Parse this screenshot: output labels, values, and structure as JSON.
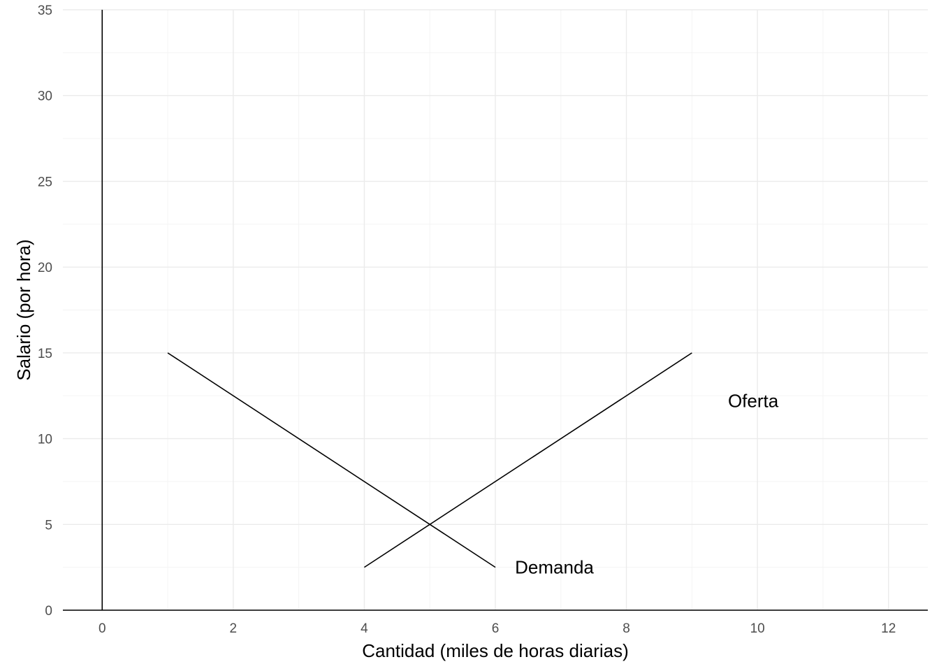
{
  "chart_data": {
    "type": "line",
    "title": "",
    "xlabel": "Cantidad (miles de horas diarias)",
    "ylabel": "Salario (por hora)",
    "xlim": [
      -0.6,
      12.6
    ],
    "ylim": [
      0,
      35
    ],
    "x_ticks": [
      0,
      2,
      4,
      6,
      8,
      10,
      12
    ],
    "y_ticks": [
      0,
      5,
      10,
      15,
      20,
      25,
      30,
      35
    ],
    "grid": true,
    "legend": "none",
    "reference_lines": {
      "vertical_at_x": 0,
      "horizontal_at_y": 0
    },
    "series": [
      {
        "x": [
          1,
          6
        ],
        "y": [
          15,
          2.5
        ],
        "color": "#000000"
      },
      {
        "x": [
          4,
          9
        ],
        "y": [
          2.5,
          15
        ],
        "color": "#000000"
      }
    ],
    "annotations": [
      {
        "text": "Demanda",
        "x": 6.3,
        "y": 2.5
      },
      {
        "text": "Oferta",
        "x": 9.55,
        "y": 12.2
      }
    ]
  }
}
